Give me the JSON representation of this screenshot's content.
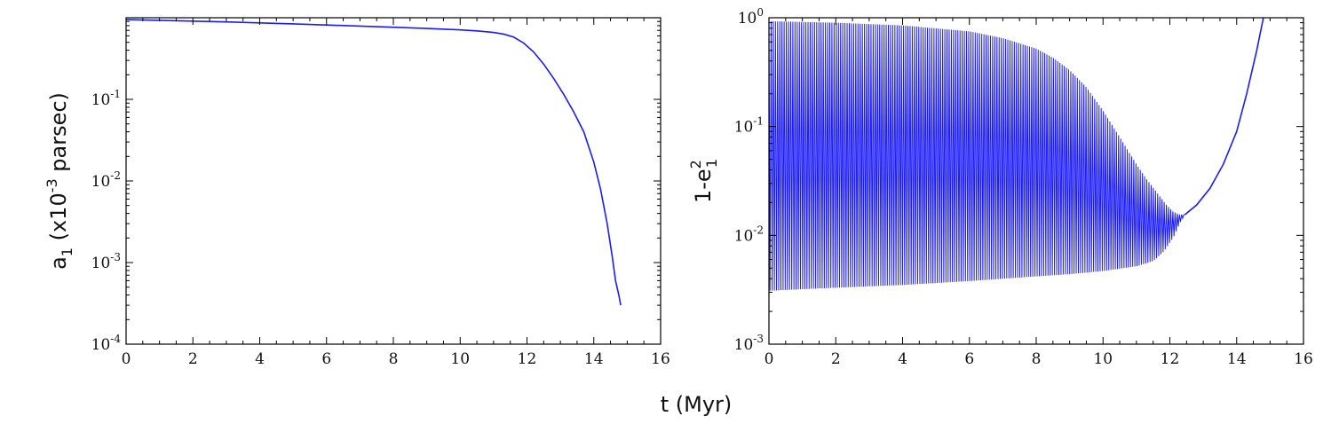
{
  "shared": {
    "xlabel": "t (Myr)"
  },
  "chart_data": [
    {
      "type": "line",
      "title": "",
      "ylabel": {
        "base": "a",
        "sub": "1",
        "mid": " (x10",
        "sup": "-3",
        "tail": " parsec)"
      },
      "xlim": [
        0,
        16
      ],
      "ylim": [
        0.0001,
        1
      ],
      "y_scale": "log",
      "x_ticks": [
        0,
        2,
        4,
        6,
        8,
        10,
        12,
        14,
        16
      ],
      "y_ticks": [
        {
          "value": 0.1,
          "base": "10",
          "exp": "-1"
        },
        {
          "value": 0.01,
          "base": "10",
          "exp": "-2"
        },
        {
          "value": 0.001,
          "base": "10",
          "exp": "-3"
        },
        {
          "value": 0.0001,
          "base": "10",
          "exp": "-4"
        }
      ],
      "series": [
        {
          "color": "#1a1aff",
          "x": [
            0,
            1,
            2,
            3,
            4,
            5,
            6,
            7,
            8,
            9,
            10,
            10.5,
            11,
            11.3,
            11.6,
            11.9,
            12.2,
            12.5,
            12.8,
            13.1,
            13.4,
            13.7,
            14.0,
            14.2,
            14.4,
            14.55,
            14.65,
            14.72,
            14.76,
            14.78,
            14.8,
            14.8
          ],
          "y": [
            0.95,
            0.93,
            0.91,
            0.89,
            0.865,
            0.84,
            0.815,
            0.79,
            0.765,
            0.74,
            0.71,
            0.69,
            0.66,
            0.63,
            0.58,
            0.49,
            0.38,
            0.27,
            0.18,
            0.115,
            0.07,
            0.04,
            0.017,
            0.008,
            0.003,
            0.0012,
            0.0006,
            0.00045,
            0.00038,
            0.00034,
            0.00031,
            0.0003
          ]
        }
      ]
    },
    {
      "type": "line",
      "title": "",
      "ylabel": {
        "base": "1-e",
        "sub": "1",
        "sup": "2"
      },
      "xlim": [
        0,
        16
      ],
      "ylim": [
        0.001,
        1
      ],
      "y_scale": "log",
      "x_ticks": [
        0,
        2,
        4,
        6,
        8,
        10,
        12,
        14,
        16
      ],
      "y_ticks": [
        {
          "value": 1,
          "base": "10",
          "exp": "0"
        },
        {
          "value": 0.1,
          "base": "10",
          "exp": "-1"
        },
        {
          "value": 0.01,
          "base": "10",
          "exp": "-2"
        },
        {
          "value": 0.001,
          "base": "10",
          "exp": "-3"
        }
      ],
      "series": [
        {
          "color": "#1a1aff",
          "oscillation_period_myr": 0.065,
          "upper_envelope": {
            "x": [
              0,
              2,
              4,
              6,
              7,
              8,
              8.5,
              9,
              9.5,
              10,
              10.5,
              11,
              11.3,
              11.6,
              11.9,
              12.1,
              12.3,
              12.45
            ],
            "y": [
              0.93,
              0.9,
              0.85,
              0.75,
              0.65,
              0.52,
              0.43,
              0.33,
              0.23,
              0.14,
              0.08,
              0.045,
              0.033,
              0.025,
              0.019,
              0.0165,
              0.0155,
              0.0155
            ]
          },
          "lower_envelope": {
            "x": [
              0,
              2,
              4,
              6,
              8,
              9,
              10,
              11,
              11.5,
              11.8,
              12.1,
              12.3,
              12.45
            ],
            "y": [
              0.0031,
              0.0033,
              0.0035,
              0.0038,
              0.0042,
              0.0044,
              0.0047,
              0.0052,
              0.0058,
              0.007,
              0.0095,
              0.013,
              0.0155
            ]
          },
          "tail": {
            "x": [
              12.45,
              12.8,
              13.2,
              13.6,
              14.0,
              14.3,
              14.6,
              14.8
            ],
            "y": [
              0.0155,
              0.019,
              0.027,
              0.045,
              0.09,
              0.2,
              0.5,
              1.0
            ]
          }
        }
      ]
    }
  ]
}
